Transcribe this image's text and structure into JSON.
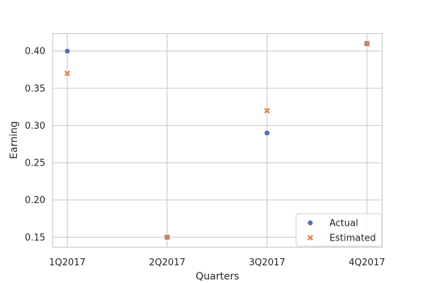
{
  "chart_data": {
    "type": "scatter",
    "categories": [
      "1Q2017",
      "2Q2017",
      "3Q2017",
      "4Q2017"
    ],
    "series": [
      {
        "name": "Actual",
        "marker": "circle",
        "color": "#4c72b0",
        "values": [
          0.4,
          0.15,
          0.29,
          0.41
        ]
      },
      {
        "name": "Estimated",
        "marker": "x",
        "color": "#dd8452",
        "values": [
          0.37,
          0.15,
          0.32,
          0.41
        ]
      }
    ],
    "xlabel": "Quarters",
    "ylabel": "Earning",
    "ylim": [
      0.137,
      0.423
    ],
    "yticks": [
      "0.15",
      "0.20",
      "0.25",
      "0.30",
      "0.35",
      "0.40"
    ],
    "grid": true,
    "legend_position": "lower-right"
  }
}
